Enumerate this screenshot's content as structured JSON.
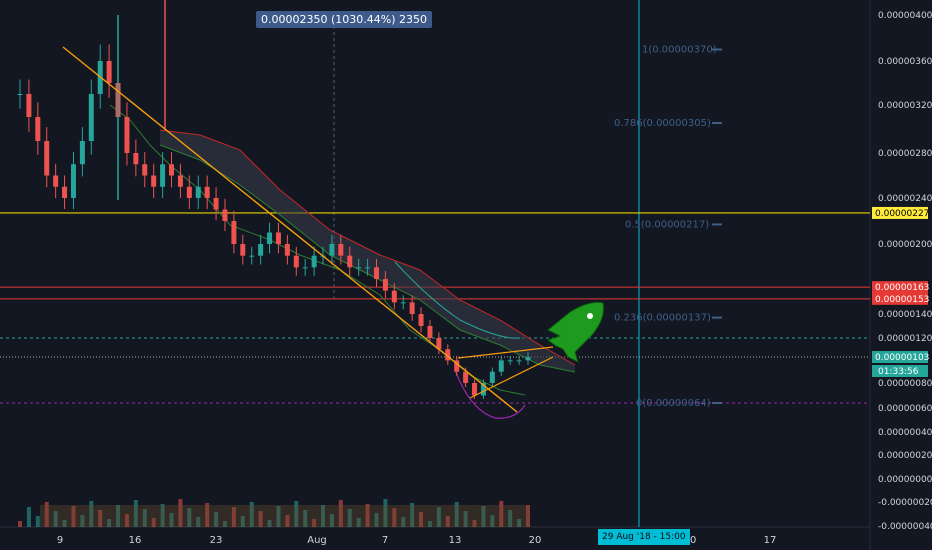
{
  "tooltip": {
    "text": "0.00002350 (1030.44%) 2350"
  },
  "crosshair": {
    "time_label": "29 Aug '18 - 15:00"
  },
  "colors": {
    "background": "#131722",
    "up_candle": "#26a69a",
    "down_candle": "#ef5350",
    "trendline": "#f59e0b",
    "support_yellow": "#e6d200",
    "resistance_red": "#e53935",
    "crosshair": "#00bcd4",
    "fib": "#3e5f86",
    "rocket": "#1e9b1e"
  },
  "chart_data": {
    "type": "candlestick",
    "x_axis": {
      "tick_labels": [
        "9",
        "16",
        "23",
        "Aug",
        "7",
        "13",
        "20",
        "2",
        "10",
        "17"
      ]
    },
    "y_axis": {
      "tick_labels": [
        "0.00000400",
        "0.00000360",
        "0.00000320",
        "0.00000280",
        "0.00000240",
        "0.00000200",
        "0.00000140",
        "0.00000120",
        "0.00000080",
        "0.00000060",
        "0.00000040",
        "0.00000020",
        "0.00000000",
        "-0.00000020",
        "-0.00000040"
      ],
      "range": [
        -4.5e-07,
        4.1e-06
      ]
    },
    "price_tags": [
      {
        "label": "0.00000227",
        "value": 2.27e-06,
        "color": "#ffeb3b",
        "text_color": "#000000"
      },
      {
        "label": "0.00000163",
        "value": 1.63e-06,
        "color": "#e53935",
        "text_color": "#ffffff"
      },
      {
        "label": "0.00000153",
        "value": 1.53e-06,
        "color": "#e53935",
        "text_color": "#ffffff"
      },
      {
        "label": "0.00000103",
        "value": 1.03e-06,
        "color": "#26a69a",
        "text_color": "#ffffff"
      }
    ],
    "countdown": "01:33:56",
    "fib_levels": [
      {
        "label": "1(0.00000370)",
        "value": 3.7e-06
      },
      {
        "label": "0.786(0.00000305)",
        "value": 3.05e-06
      },
      {
        "label": "0.5(0.00000217)",
        "value": 2.17e-06
      },
      {
        "label": "0.236(0.00000137)",
        "value": 1.37e-06
      },
      {
        "label": "0(0.00000064)",
        "value": 6.4e-07
      }
    ],
    "candles_close_approx": [
      3.3e-06,
      3.1e-06,
      2.9e-06,
      2.6e-06,
      2.5e-06,
      2.4e-06,
      2.7e-06,
      2.9e-06,
      3.3e-06,
      3.6e-06,
      3.4e-06,
      3.1e-06,
      2.8e-06,
      2.7e-06,
      2.6e-06,
      2.5e-06,
      2.7e-06,
      2.6e-06,
      2.5e-06,
      2.4e-06,
      2.5e-06,
      2.4e-06,
      2.3e-06,
      2.2e-06,
      2e-06,
      1.9e-06,
      1.9e-06,
      2e-06,
      2.1e-06,
      2e-06,
      1.9e-06,
      1.8e-06,
      1.8e-06,
      1.9e-06,
      1.9e-06,
      2e-06,
      1.9e-06,
      1.8e-06,
      1.8e-06,
      1.8e-06,
      1.7e-06,
      1.6e-06,
      1.5e-06,
      1.5e-06,
      1.4e-06,
      1.3e-06,
      1.2e-06,
      1.1e-06,
      1e-06,
      9e-07,
      8e-07,
      7e-07,
      8e-07,
      9e-07,
      1e-06,
      1e-06,
      1e-06,
      1.03e-06
    ]
  }
}
